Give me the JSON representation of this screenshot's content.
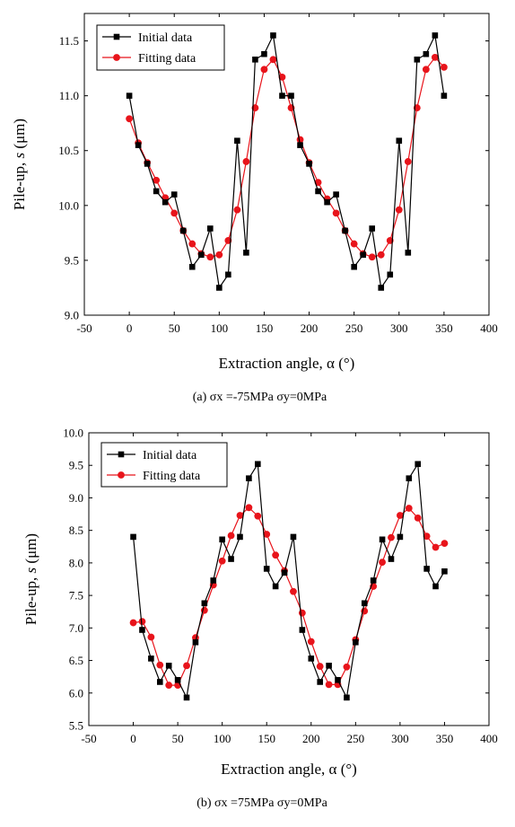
{
  "chart_data": [
    {
      "type": "line",
      "caption": "(a) σx =-75MPa σy=0MPa",
      "xlabel": "Extraction angle, α (°)",
      "ylabel_parts": [
        "Pile-up, ",
        "s",
        " (μm)"
      ],
      "xlim": [
        -50,
        400
      ],
      "ylim": [
        9.0,
        11.75
      ],
      "xticks": [
        -50,
        0,
        50,
        100,
        150,
        200,
        250,
        300,
        350,
        400
      ],
      "yticks": [
        9.0,
        9.5,
        10.0,
        10.5,
        11.0,
        11.5
      ],
      "ytick_labels": [
        "9.0",
        "9.5",
        "10.0",
        "10.5",
        "11.0",
        "11.5"
      ],
      "grid": false,
      "legend_position": "top-left",
      "x": [
        0,
        10,
        20,
        30,
        40,
        50,
        60,
        70,
        80,
        90,
        100,
        110,
        120,
        130,
        140,
        150,
        160,
        170,
        180,
        190,
        200,
        210,
        220,
        230,
        240,
        250,
        260,
        270,
        280,
        290,
        300,
        310,
        320,
        330,
        340,
        350
      ],
      "series": [
        {
          "name": "Initial data",
          "color": "#000000",
          "marker": "square",
          "values": [
            11.0,
            10.55,
            10.38,
            10.13,
            10.03,
            10.1,
            9.77,
            9.44,
            9.55,
            9.79,
            9.25,
            9.37,
            10.59,
            9.57,
            11.33,
            11.38,
            11.55,
            11.0,
            11.0,
            10.55,
            10.38,
            10.13,
            10.03,
            10.1,
            9.77,
            9.44,
            9.55,
            9.79,
            9.25,
            9.37,
            10.59,
            9.57,
            11.33,
            11.38,
            11.55,
            11.0
          ]
        },
        {
          "name": "Fitting data",
          "color": "#e8141b",
          "marker": "circle",
          "values": [
            10.79,
            10.57,
            10.39,
            10.23,
            10.07,
            9.93,
            9.77,
            9.65,
            9.56,
            9.53,
            9.55,
            9.68,
            9.96,
            10.4,
            10.89,
            11.24,
            11.33,
            11.17,
            10.89,
            10.6,
            10.39,
            10.21,
            10.06,
            9.93,
            9.77,
            9.65,
            9.56,
            9.53,
            9.55,
            9.68,
            9.96,
            10.4,
            10.89,
            11.24,
            11.35,
            11.26
          ]
        }
      ]
    },
    {
      "type": "line",
      "caption": "(b) σx =75MPa σy=0MPa",
      "xlabel": "Extraction angle, α (°)",
      "ylabel_parts": [
        "Pile-up, ",
        "s",
        " (μm)"
      ],
      "xlim": [
        -50,
        400
      ],
      "ylim": [
        5.5,
        10.0
      ],
      "xticks": [
        -50,
        0,
        50,
        100,
        150,
        200,
        250,
        300,
        350,
        400
      ],
      "yticks": [
        5.5,
        6.0,
        6.5,
        7.0,
        7.5,
        8.0,
        8.5,
        9.0,
        9.5,
        10.0
      ],
      "ytick_labels": [
        "5.5",
        "6.0",
        "6.5",
        "7.0",
        "7.5",
        "8.0",
        "8.5",
        "9.0",
        "9.5",
        "10.0"
      ],
      "grid": false,
      "legend_position": "top-left",
      "x": [
        0,
        10,
        20,
        30,
        40,
        50,
        60,
        70,
        80,
        90,
        100,
        110,
        120,
        130,
        140,
        150,
        160,
        170,
        180,
        190,
        200,
        210,
        220,
        230,
        240,
        250,
        260,
        270,
        280,
        290,
        300,
        310,
        320,
        330,
        340,
        350
      ],
      "series": [
        {
          "name": "Initial data",
          "color": "#000000",
          "marker": "square",
          "values": [
            8.4,
            6.97,
            6.53,
            6.17,
            6.42,
            6.2,
            5.93,
            6.78,
            7.38,
            7.73,
            8.36,
            8.06,
            8.4,
            9.3,
            9.52,
            7.91,
            7.64,
            7.85,
            8.4,
            6.97,
            6.53,
            6.17,
            6.42,
            6.2,
            5.93,
            6.78,
            7.38,
            7.73,
            8.36,
            8.06,
            8.4,
            9.3,
            9.52,
            7.91,
            7.64,
            7.87
          ]
        },
        {
          "name": "Fitting data",
          "color": "#e8141b",
          "marker": "circle",
          "values": [
            7.08,
            7.1,
            6.86,
            6.43,
            6.12,
            6.12,
            6.42,
            6.85,
            7.27,
            7.66,
            8.03,
            8.42,
            8.73,
            8.85,
            8.72,
            8.44,
            8.12,
            7.88,
            7.56,
            7.23,
            6.79,
            6.41,
            6.13,
            6.13,
            6.4,
            6.82,
            7.26,
            7.64,
            8.01,
            8.39,
            8.73,
            8.84,
            8.69,
            8.41,
            8.24,
            8.3
          ]
        }
      ]
    }
  ]
}
